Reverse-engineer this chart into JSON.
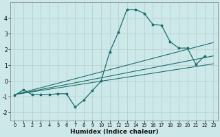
{
  "xlabel": "Humidex (Indice chaleur)",
  "bg_color": "#cde8e8",
  "grid_color": "#b8d0d0",
  "line_color": "#1a6e6e",
  "xlim": [
    -0.5,
    23.5
  ],
  "ylim": [
    -2.5,
    5.0
  ],
  "xticks": [
    0,
    1,
    2,
    3,
    4,
    5,
    6,
    7,
    8,
    9,
    10,
    11,
    12,
    13,
    14,
    15,
    16,
    17,
    18,
    19,
    20,
    21,
    22,
    23
  ],
  "yticks": [
    -2,
    -1,
    0,
    1,
    2,
    3,
    4
  ],
  "main_x": [
    0,
    1,
    2,
    3,
    4,
    5,
    6,
    7,
    8,
    9,
    10,
    11,
    12,
    13,
    14,
    15,
    16,
    17,
    18,
    19,
    20,
    21,
    22
  ],
  "main_y": [
    -0.9,
    -0.55,
    -0.85,
    -0.85,
    -0.85,
    -0.8,
    -0.8,
    -1.65,
    -1.2,
    -0.6,
    0.0,
    1.85,
    3.1,
    4.55,
    4.55,
    4.3,
    3.6,
    3.55,
    2.5,
    2.1,
    2.1,
    1.05,
    1.6
  ],
  "line1_x0": 0,
  "line1_y0": -0.85,
  "line1_x1": 23,
  "line1_y1": 2.45,
  "line2_x0": 0,
  "line2_y0": -0.85,
  "line2_x1": 23,
  "line2_y1": 1.6,
  "line3_x0": 0,
  "line3_y0": -0.85,
  "line3_x1": 23,
  "line3_y1": 1.1
}
